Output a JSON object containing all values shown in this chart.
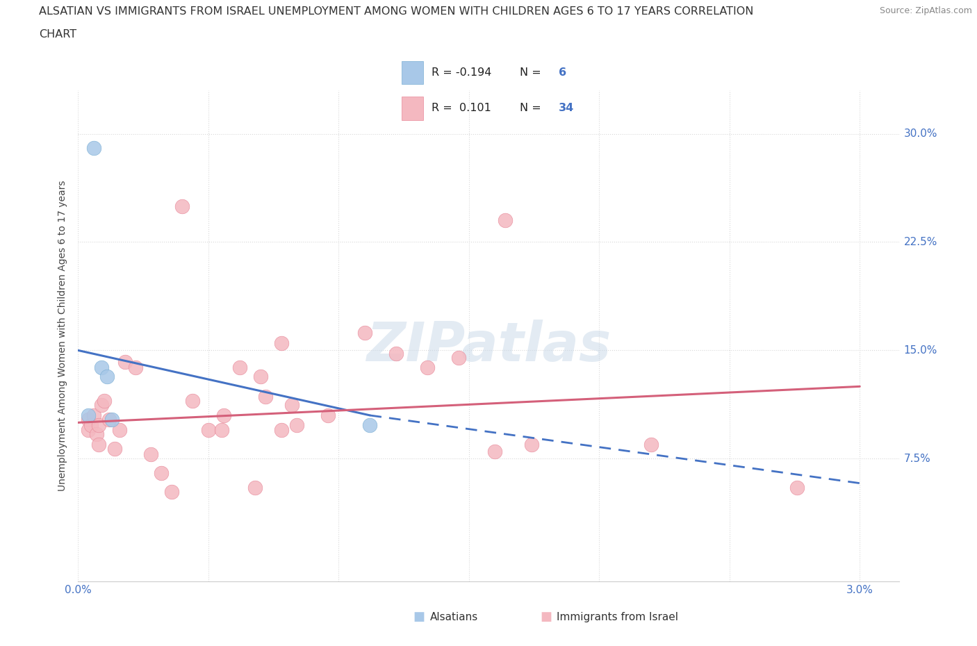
{
  "title_line1": "ALSATIAN VS IMMIGRANTS FROM ISRAEL UNEMPLOYMENT AMONG WOMEN WITH CHILDREN AGES 6 TO 17 YEARS CORRELATION",
  "title_line2": "CHART",
  "source": "Source: ZipAtlas.com",
  "ylabel": "Unemployment Among Women with Children Ages 6 to 17 years",
  "xlim": [
    0.0,
    3.15
  ],
  "ylim": [
    -1.0,
    33.0
  ],
  "x_ticks": [
    0.0,
    0.5,
    1.0,
    1.5,
    2.0,
    2.5,
    3.0
  ],
  "x_tick_labels": [
    "0.0%",
    "",
    "",
    "",
    "",
    "",
    "3.0%"
  ],
  "y_ticks": [
    0.0,
    7.5,
    15.0,
    22.5,
    30.0
  ],
  "y_tick_labels_left": [
    "",
    "",
    "",
    "",
    ""
  ],
  "y_tick_labels_right": [
    "",
    "7.5%",
    "15.0%",
    "22.5%",
    "30.0%"
  ],
  "alsatian_color": "#a8c8e8",
  "alsatian_edge_color": "#7bafd4",
  "israel_color": "#f4b8c0",
  "israel_edge_color": "#e8899a",
  "trendline_blue": "#4472c4",
  "trendline_pink": "#d4607a",
  "background_color": "#ffffff",
  "grid_color": "#d8d8d8",
  "tick_color": "#4472c4",
  "alsatian_N": 6,
  "israel_N": 34,
  "alsatian_R": -0.194,
  "israel_R": 0.101,
  "alsatian_points_x": [
    0.04,
    0.06,
    0.09,
    0.11,
    0.13,
    1.12
  ],
  "alsatian_points_y": [
    10.5,
    29.0,
    13.8,
    13.2,
    10.2,
    9.8
  ],
  "israel_points_x": [
    0.04,
    0.04,
    0.05,
    0.06,
    0.07,
    0.08,
    0.08,
    0.09,
    0.1,
    0.12,
    0.14,
    0.16,
    0.18,
    0.22,
    0.28,
    0.32,
    0.36,
    0.44,
    0.5,
    0.56,
    0.62,
    0.7,
    0.72,
    0.78,
    0.82,
    0.84,
    0.96,
    1.1,
    1.22,
    1.34,
    1.46,
    1.64,
    1.74,
    2.76
  ],
  "israel_points_y": [
    10.2,
    9.5,
    9.8,
    10.5,
    9.2,
    9.8,
    8.5,
    11.2,
    11.5,
    10.2,
    8.2,
    9.5,
    14.2,
    13.8,
    7.8,
    6.5,
    5.2,
    11.5,
    9.5,
    10.5,
    13.8,
    13.2,
    11.8,
    9.5,
    11.2,
    9.8,
    10.5,
    16.2,
    14.8,
    13.8,
    14.5,
    24.0,
    8.5,
    5.5
  ],
  "israel_extra_points_x": [
    0.4,
    0.55,
    0.68,
    1.6,
    2.2,
    0.78
  ],
  "israel_extra_points_y": [
    25.0,
    9.5,
    5.5,
    8.0,
    8.5,
    15.5
  ],
  "blue_solid_x0": 0.0,
  "blue_solid_y0": 15.0,
  "blue_solid_x1": 1.12,
  "blue_solid_y1": 10.5,
  "blue_dash_x0": 1.12,
  "blue_dash_y0": 10.5,
  "blue_dash_x1": 3.0,
  "blue_dash_y1": 5.8,
  "pink_x0": 0.0,
  "pink_y0": 10.0,
  "pink_x1": 3.0,
  "pink_y1": 12.5,
  "watermark_text": "ZIPatlas",
  "legend_R1_text": "R = -0.194",
  "legend_N1_text": "N =  6",
  "legend_R2_text": "R =  0.101",
  "legend_N2_text": "N = 34",
  "bottom_legend_alsatians": "Alsatians",
  "bottom_legend_israel": "Immigrants from Israel"
}
